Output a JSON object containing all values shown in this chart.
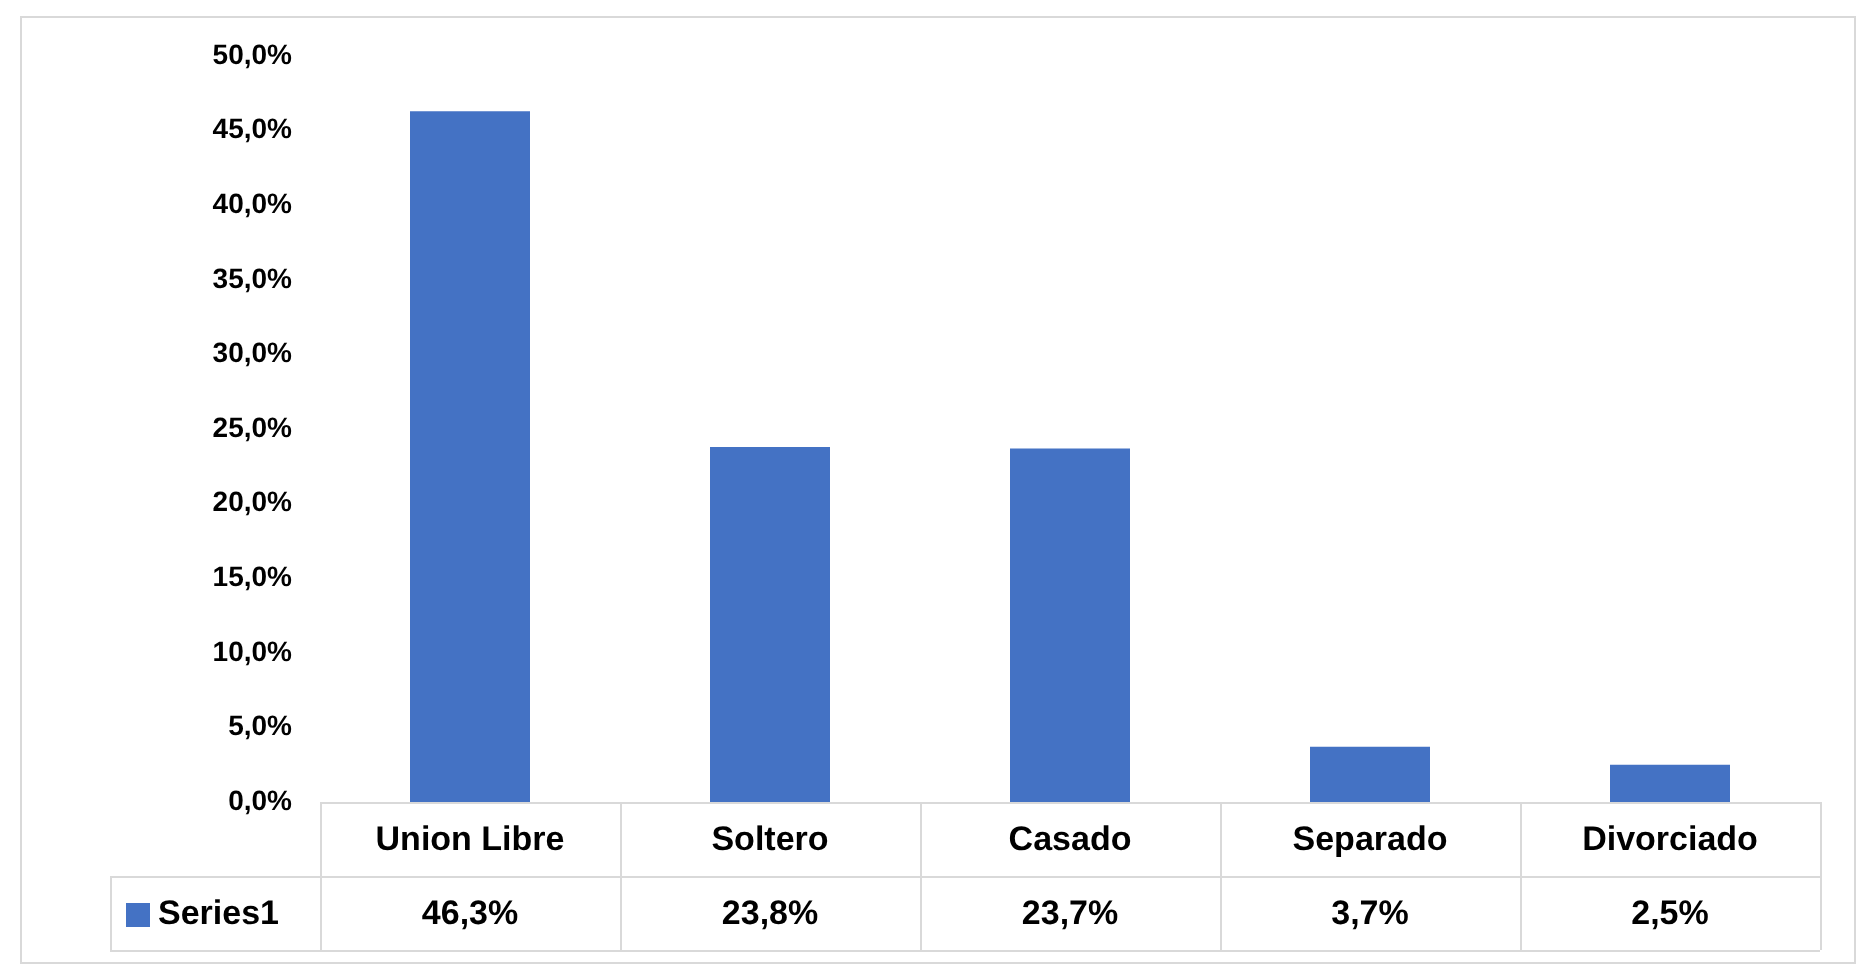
{
  "chart_data": {
    "type": "bar",
    "categories": [
      "Union Libre",
      "Soltero",
      "Casado",
      "Separado",
      "Divorciado"
    ],
    "series": [
      {
        "name": "Series1",
        "color": "#4472c4",
        "values": [
          46.3,
          23.8,
          23.7,
          3.7,
          2.5
        ],
        "value_labels": [
          "46,3%",
          "23,8%",
          "23,7%",
          "3,7%",
          "2,5%"
        ]
      }
    ],
    "ylim": [
      0,
      50
    ],
    "yticks": [
      {
        "value": 0,
        "label": "0,0%"
      },
      {
        "value": 5,
        "label": "5,0%"
      },
      {
        "value": 10,
        "label": "10,0%"
      },
      {
        "value": 15,
        "label": "15,0%"
      },
      {
        "value": 20,
        "label": "20,0%"
      },
      {
        "value": 25,
        "label": "25,0%"
      },
      {
        "value": 30,
        "label": "30,0%"
      },
      {
        "value": 35,
        "label": "35,0%"
      },
      {
        "value": 40,
        "label": "40,0%"
      },
      {
        "value": 45,
        "label": "45,0%"
      },
      {
        "value": 50,
        "label": "50,0%"
      }
    ],
    "grid": false,
    "legend": "bottom"
  }
}
